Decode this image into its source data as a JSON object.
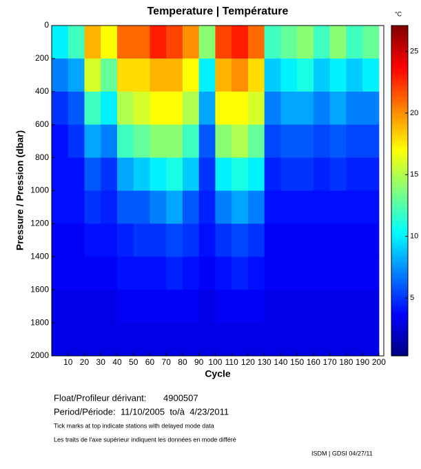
{
  "chart_data": {
    "type": "heatmap",
    "title": "Temperature | Température",
    "xlabel": "Cycle",
    "ylabel": "Pressure / Pression (dbar)",
    "colormap": "jet",
    "x_bins": [
      0,
      10,
      20,
      30,
      40,
      50,
      60,
      70,
      80,
      90,
      100,
      110,
      120,
      130,
      140,
      150,
      160,
      170,
      180,
      190,
      200
    ],
    "y_bins": [
      0,
      200,
      400,
      600,
      800,
      1000,
      1200,
      1400,
      1600,
      1800,
      2000
    ],
    "values": [
      [
        10,
        12,
        19,
        17,
        21,
        21,
        23,
        22,
        20,
        14,
        22,
        23,
        21,
        12,
        13,
        14,
        12,
        14,
        12,
        13
      ],
      [
        7,
        8,
        16,
        13,
        18,
        18,
        19,
        19,
        17,
        10,
        19,
        20,
        18,
        9,
        10,
        11,
        9,
        10,
        9,
        10
      ],
      [
        5,
        6,
        12,
        10,
        15,
        16,
        17,
        17,
        15,
        8,
        17,
        17,
        16,
        7,
        8,
        8,
        7,
        8,
        7,
        7
      ],
      [
        4,
        5,
        8,
        7,
        12,
        13,
        14,
        14,
        12,
        6,
        14,
        15,
        13,
        5.5,
        6,
        6,
        5.5,
        6,
        5.5,
        5.5
      ],
      [
        4,
        4,
        6,
        5,
        8,
        9,
        10,
        11,
        9,
        5,
        10,
        11,
        10,
        4.5,
        5,
        5,
        4.5,
        5,
        4.5,
        4.5
      ],
      [
        4,
        4,
        5,
        4.5,
        6,
        6,
        7,
        8,
        6,
        4.5,
        7,
        8,
        7,
        4,
        4,
        4,
        4,
        4,
        4,
        4
      ],
      [
        3.5,
        3.5,
        4,
        4,
        4.5,
        5,
        5,
        5.5,
        5,
        4,
        5,
        5.5,
        5,
        3.5,
        3.5,
        3.5,
        3.5,
        3.5,
        3.5,
        3.5
      ],
      [
        3.5,
        3.5,
        3.5,
        3.5,
        4,
        4,
        4,
        4.5,
        4,
        3.5,
        4,
        4.5,
        4,
        3.5,
        3.5,
        3.5,
        3.5,
        3.5,
        3.5,
        3.5
      ],
      [
        3,
        3,
        3,
        3,
        3.5,
        3.5,
        3.5,
        3.5,
        3.5,
        3,
        3.5,
        3.5,
        3.5,
        3,
        3,
        3,
        3,
        3,
        3,
        3
      ],
      [
        3,
        3,
        3,
        3,
        3,
        3,
        3,
        3,
        3,
        3,
        3,
        3,
        3,
        3,
        3,
        3,
        3,
        3,
        3,
        3
      ]
    ],
    "xlim": [
      0,
      203
    ],
    "xticks": [
      10,
      20,
      30,
      40,
      50,
      60,
      70,
      80,
      90,
      100,
      110,
      120,
      130,
      140,
      150,
      160,
      170,
      180,
      190,
      200
    ],
    "ylim": [
      2000,
      0
    ],
    "yticks": [
      0,
      200,
      400,
      600,
      800,
      1000,
      1200,
      1400,
      1600,
      1800,
      2000
    ],
    "colorbar": {
      "label": "°C",
      "lim": [
        0.3,
        27.1
      ],
      "ticks": [
        5,
        10,
        15,
        20,
        25
      ]
    }
  },
  "info": {
    "float_label": "Float/Profileur dérivant:",
    "float_id": "4900507",
    "period_label": "Period/Période:",
    "period": "11/10/2005  to/à  4/23/2011",
    "note_en": "Tick marks at top indicate stations with delayed mode data",
    "note_fr": "Les traits de l'axe supérieur indiquent les données en mode différé",
    "footer": "ISDM | GDSI 04/27/11"
  }
}
